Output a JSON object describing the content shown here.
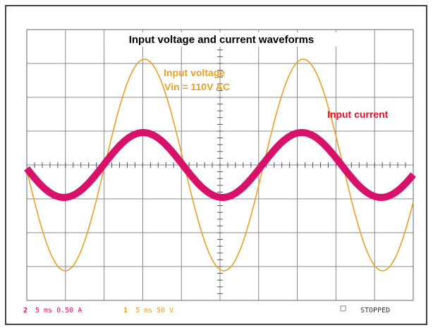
{
  "title": "Input voltage and current waveforms",
  "annotations": {
    "voltage_label": "Input voltage",
    "voltage_spec": "Vin = 110V AC",
    "current_label": "Input current"
  },
  "status": {
    "channel2": "2",
    "channel2_scale": "5 ms 0.50 A",
    "channel1": "1",
    "channel1_scale": "5 ms 50 V",
    "state": "STOPPED"
  }
}
